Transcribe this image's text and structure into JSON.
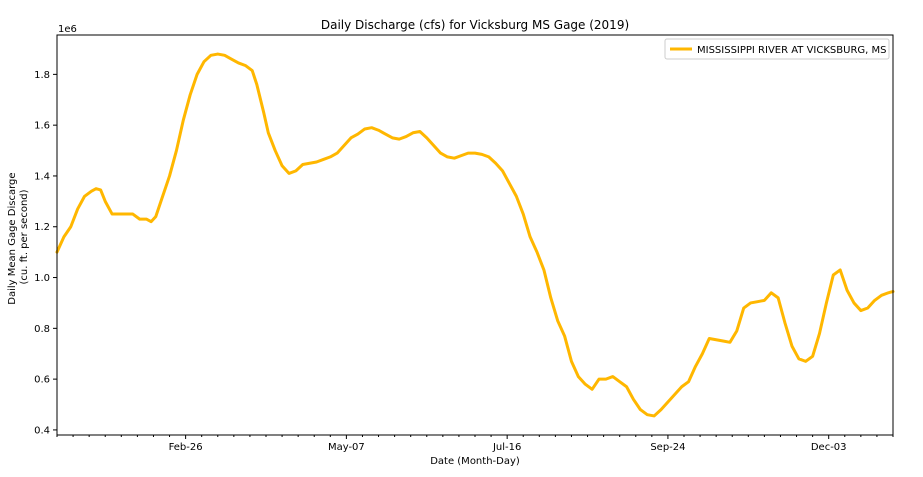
{
  "chart_data": {
    "type": "line",
    "title": "Daily Discharge (cfs) for Vicksburg MS Gage (2019)",
    "xlabel": "Date (Month-Day)",
    "ylabel": [
      "Daily Mean Gage Discarge",
      "(cu. ft. per second)"
    ],
    "y_offset_label": "1e6",
    "xlim": [
      0,
      364
    ],
    "ylim": [
      0.38,
      1.955
    ],
    "x_ticks": [
      {
        "day": 56,
        "label": "Feb-26"
      },
      {
        "day": 126,
        "label": "May-07"
      },
      {
        "day": 196,
        "label": "Jul-16"
      },
      {
        "day": 266,
        "label": "Sep-24"
      },
      {
        "day": 336,
        "label": "Dec-03"
      }
    ],
    "y_ticks": [
      0.4,
      0.6,
      0.8,
      1.0,
      1.2,
      1.4,
      1.6,
      1.8
    ],
    "legend_position": "upper-right",
    "series": [
      {
        "name": "MISSISSIPPI RIVER AT VICKSBURG, MS",
        "color": "#FFB700",
        "unit_scale": "1e6",
        "points": [
          [
            0,
            1.1
          ],
          [
            3,
            1.16
          ],
          [
            6,
            1.2
          ],
          [
            9,
            1.27
          ],
          [
            12,
            1.32
          ],
          [
            15,
            1.34
          ],
          [
            17,
            1.35
          ],
          [
            19,
            1.345
          ],
          [
            21,
            1.3
          ],
          [
            24,
            1.25
          ],
          [
            28,
            1.25
          ],
          [
            33,
            1.25
          ],
          [
            36,
            1.23
          ],
          [
            39,
            1.23
          ],
          [
            41,
            1.22
          ],
          [
            43,
            1.24
          ],
          [
            46,
            1.32
          ],
          [
            49,
            1.4
          ],
          [
            52,
            1.5
          ],
          [
            55,
            1.62
          ],
          [
            58,
            1.72
          ],
          [
            61,
            1.8
          ],
          [
            64,
            1.85
          ],
          [
            67,
            1.875
          ],
          [
            70,
            1.88
          ],
          [
            73,
            1.875
          ],
          [
            76,
            1.86
          ],
          [
            79,
            1.845
          ],
          [
            82,
            1.835
          ],
          [
            85,
            1.815
          ],
          [
            87,
            1.76
          ],
          [
            90,
            1.65
          ],
          [
            92,
            1.57
          ],
          [
            95,
            1.5
          ],
          [
            98,
            1.44
          ],
          [
            101,
            1.41
          ],
          [
            104,
            1.42
          ],
          [
            107,
            1.445
          ],
          [
            110,
            1.45
          ],
          [
            113,
            1.455
          ],
          [
            116,
            1.465
          ],
          [
            119,
            1.475
          ],
          [
            122,
            1.49
          ],
          [
            125,
            1.52
          ],
          [
            128,
            1.55
          ],
          [
            131,
            1.565
          ],
          [
            134,
            1.585
          ],
          [
            137,
            1.59
          ],
          [
            140,
            1.58
          ],
          [
            143,
            1.565
          ],
          [
            146,
            1.55
          ],
          [
            149,
            1.545
          ],
          [
            152,
            1.555
          ],
          [
            155,
            1.57
          ],
          [
            158,
            1.575
          ],
          [
            161,
            1.55
          ],
          [
            164,
            1.52
          ],
          [
            167,
            1.49
          ],
          [
            170,
            1.475
          ],
          [
            173,
            1.47
          ],
          [
            176,
            1.48
          ],
          [
            179,
            1.49
          ],
          [
            182,
            1.49
          ],
          [
            185,
            1.485
          ],
          [
            188,
            1.475
          ],
          [
            191,
            1.45
          ],
          [
            194,
            1.42
          ],
          [
            197,
            1.37
          ],
          [
            200,
            1.32
          ],
          [
            203,
            1.25
          ],
          [
            206,
            1.16
          ],
          [
            209,
            1.1
          ],
          [
            212,
            1.03
          ],
          [
            215,
            0.92
          ],
          [
            218,
            0.83
          ],
          [
            221,
            0.77
          ],
          [
            224,
            0.67
          ],
          [
            227,
            0.61
          ],
          [
            230,
            0.58
          ],
          [
            233,
            0.56
          ],
          [
            236,
            0.6
          ],
          [
            239,
            0.6
          ],
          [
            242,
            0.61
          ],
          [
            245,
            0.59
          ],
          [
            248,
            0.57
          ],
          [
            251,
            0.52
          ],
          [
            254,
            0.48
          ],
          [
            257,
            0.46
          ],
          [
            260,
            0.455
          ],
          [
            263,
            0.48
          ],
          [
            266,
            0.51
          ],
          [
            269,
            0.54
          ],
          [
            272,
            0.57
          ],
          [
            275,
            0.59
          ],
          [
            278,
            0.65
          ],
          [
            281,
            0.7
          ],
          [
            284,
            0.76
          ],
          [
            287,
            0.755
          ],
          [
            290,
            0.75
          ],
          [
            293,
            0.745
          ],
          [
            296,
            0.79
          ],
          [
            299,
            0.88
          ],
          [
            302,
            0.9
          ],
          [
            305,
            0.905
          ],
          [
            308,
            0.91
          ],
          [
            311,
            0.94
          ],
          [
            314,
            0.92
          ],
          [
            317,
            0.82
          ],
          [
            320,
            0.73
          ],
          [
            323,
            0.68
          ],
          [
            326,
            0.67
          ],
          [
            329,
            0.69
          ],
          [
            332,
            0.78
          ],
          [
            335,
            0.9
          ],
          [
            338,
            1.01
          ],
          [
            341,
            1.03
          ],
          [
            344,
            0.95
          ],
          [
            347,
            0.9
          ],
          [
            350,
            0.87
          ],
          [
            353,
            0.88
          ],
          [
            356,
            0.91
          ],
          [
            359,
            0.93
          ],
          [
            362,
            0.94
          ],
          [
            364,
            0.945
          ]
        ]
      }
    ]
  }
}
